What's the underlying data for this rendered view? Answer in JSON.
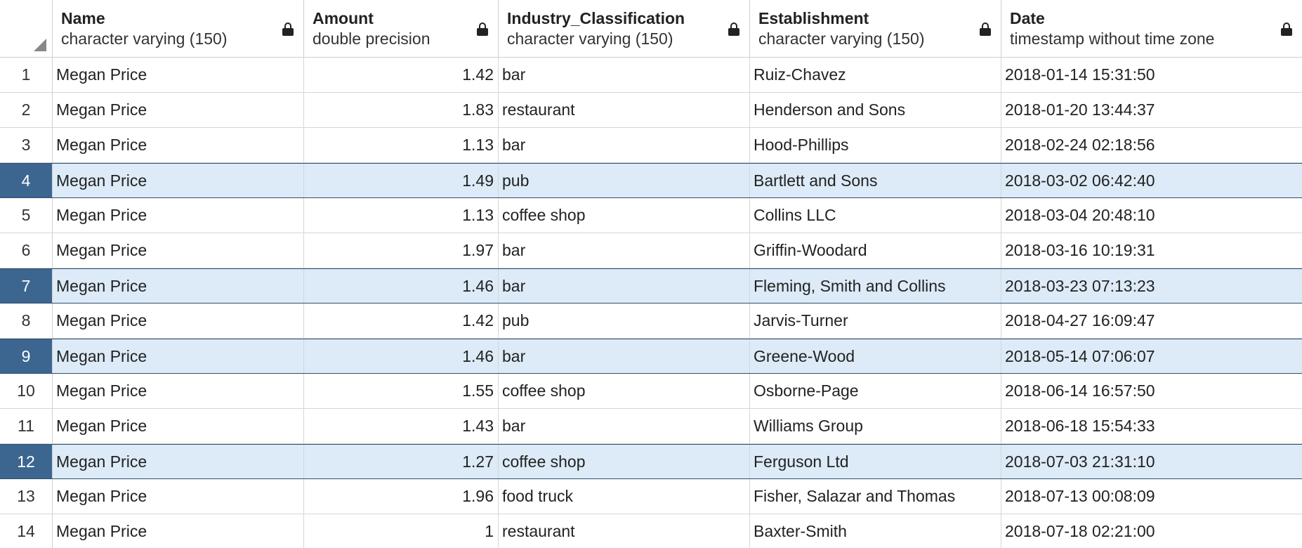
{
  "columns": [
    {
      "name": "Name",
      "type": "character varying (150)"
    },
    {
      "name": "Amount",
      "type": "double precision"
    },
    {
      "name": "Industry_Classification",
      "type": "character varying (150)"
    },
    {
      "name": "Establishment",
      "type": "character varying (150)"
    },
    {
      "name": "Date",
      "type": "timestamp without time zone"
    }
  ],
  "icons": {
    "lock": "lock-icon",
    "corner": "select-all-triangle"
  },
  "colors": {
    "selected_row_bg": "#dcebf7",
    "selected_rownum_bg": "#3c6690",
    "grid_line": "#d6d6d6"
  },
  "rows": [
    {
      "n": "1",
      "name": "Megan Price",
      "amount": "1.42",
      "industry": "bar",
      "establishment": "Ruiz-Chavez",
      "date": "2018-01-14 15:31:50",
      "selected": false
    },
    {
      "n": "2",
      "name": "Megan Price",
      "amount": "1.83",
      "industry": "restaurant",
      "establishment": "Henderson and Sons",
      "date": "2018-01-20 13:44:37",
      "selected": false
    },
    {
      "n": "3",
      "name": "Megan Price",
      "amount": "1.13",
      "industry": "bar",
      "establishment": "Hood-Phillips",
      "date": "2018-02-24 02:18:56",
      "selected": false
    },
    {
      "n": "4",
      "name": "Megan Price",
      "amount": "1.49",
      "industry": "pub",
      "establishment": "Bartlett and Sons",
      "date": "2018-03-02 06:42:40",
      "selected": true
    },
    {
      "n": "5",
      "name": "Megan Price",
      "amount": "1.13",
      "industry": "coffee shop",
      "establishment": "Collins LLC",
      "date": "2018-03-04 20:48:10",
      "selected": false
    },
    {
      "n": "6",
      "name": "Megan Price",
      "amount": "1.97",
      "industry": "bar",
      "establishment": "Griffin-Woodard",
      "date": "2018-03-16 10:19:31",
      "selected": false
    },
    {
      "n": "7",
      "name": "Megan Price",
      "amount": "1.46",
      "industry": "bar",
      "establishment": "Fleming, Smith and Collins",
      "date": "2018-03-23 07:13:23",
      "selected": true
    },
    {
      "n": "8",
      "name": "Megan Price",
      "amount": "1.42",
      "industry": "pub",
      "establishment": "Jarvis-Turner",
      "date": "2018-04-27 16:09:47",
      "selected": false
    },
    {
      "n": "9",
      "name": "Megan Price",
      "amount": "1.46",
      "industry": "bar",
      "establishment": "Greene-Wood",
      "date": "2018-05-14 07:06:07",
      "selected": true
    },
    {
      "n": "10",
      "name": "Megan Price",
      "amount": "1.55",
      "industry": "coffee shop",
      "establishment": "Osborne-Page",
      "date": "2018-06-14 16:57:50",
      "selected": false
    },
    {
      "n": "11",
      "name": "Megan Price",
      "amount": "1.43",
      "industry": "bar",
      "establishment": "Williams Group",
      "date": "2018-06-18 15:54:33",
      "selected": false
    },
    {
      "n": "12",
      "name": "Megan Price",
      "amount": "1.27",
      "industry": "coffee shop",
      "establishment": "Ferguson Ltd",
      "date": "2018-07-03 21:31:10",
      "selected": true
    },
    {
      "n": "13",
      "name": "Megan Price",
      "amount": "1.96",
      "industry": "food truck",
      "establishment": "Fisher, Salazar and Thomas",
      "date": "2018-07-13 00:08:09",
      "selected": false
    },
    {
      "n": "14",
      "name": "Megan Price",
      "amount": "1",
      "industry": "restaurant",
      "establishment": "Baxter-Smith",
      "date": "2018-07-18 02:21:00",
      "selected": false
    }
  ]
}
